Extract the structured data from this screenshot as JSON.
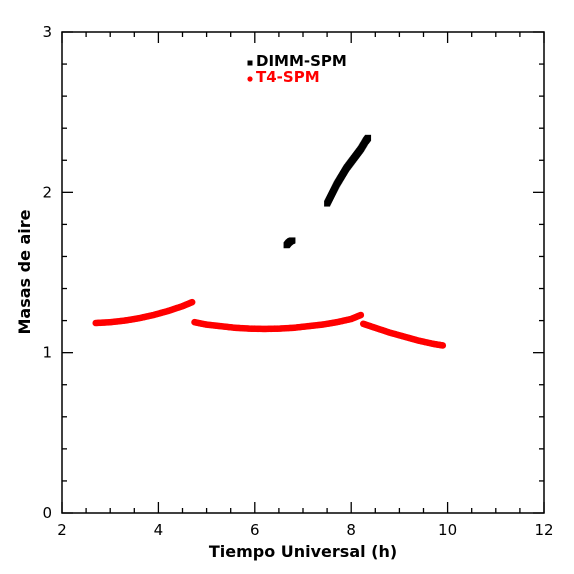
{
  "chart_data": {
    "type": "scatter",
    "xlabel": "Tiempo Universal (h)",
    "ylabel": "Masas de aire",
    "xlim": [
      2,
      12
    ],
    "ylim": [
      0,
      3
    ],
    "xticks": [
      2,
      4,
      6,
      8,
      10,
      12
    ],
    "yticks": [
      0,
      1,
      2,
      3
    ],
    "xminor": 0.5,
    "yminor": 0.2,
    "legend_position": "top-center",
    "series": [
      {
        "name": "DIMM-SPM",
        "color": "#000000",
        "marker": "square",
        "segments": [
          {
            "points": [
              [
                6.66,
                1.67
              ],
              [
                6.7,
                1.685
              ],
              [
                6.74,
                1.695
              ],
              [
                6.78,
                1.7
              ]
            ]
          },
          {
            "points": [
              [
                7.5,
                1.93
              ],
              [
                7.6,
                1.99
              ],
              [
                7.7,
                2.05
              ],
              [
                7.8,
                2.1
              ],
              [
                7.9,
                2.15
              ],
              [
                8.0,
                2.19
              ],
              [
                8.1,
                2.23
              ],
              [
                8.2,
                2.27
              ],
              [
                8.3,
                2.32
              ],
              [
                8.35,
                2.34
              ]
            ]
          }
        ]
      },
      {
        "name": "T4-SPM",
        "color": "#ff0000",
        "marker": "circle",
        "segments": [
          {
            "points": [
              [
                2.7,
                1.185
              ],
              [
                3.0,
                1.19
              ],
              [
                3.3,
                1.2
              ],
              [
                3.6,
                1.215
              ],
              [
                3.9,
                1.235
              ],
              [
                4.2,
                1.26
              ],
              [
                4.5,
                1.29
              ],
              [
                4.7,
                1.315
              ]
            ]
          },
          {
            "points": [
              [
                4.75,
                1.19
              ],
              [
                5.0,
                1.175
              ],
              [
                5.3,
                1.165
              ],
              [
                5.6,
                1.155
              ],
              [
                5.9,
                1.15
              ],
              [
                6.2,
                1.148
              ],
              [
                6.5,
                1.15
              ],
              [
                6.8,
                1.155
              ],
              [
                7.1,
                1.165
              ],
              [
                7.4,
                1.175
              ],
              [
                7.7,
                1.19
              ],
              [
                8.0,
                1.21
              ],
              [
                8.2,
                1.235
              ]
            ]
          },
          {
            "points": [
              [
                8.25,
                1.18
              ],
              [
                8.5,
                1.155
              ],
              [
                8.8,
                1.125
              ],
              [
                9.1,
                1.1
              ],
              [
                9.4,
                1.075
              ],
              [
                9.7,
                1.055
              ],
              [
                9.9,
                1.045
              ]
            ]
          }
        ]
      }
    ]
  }
}
